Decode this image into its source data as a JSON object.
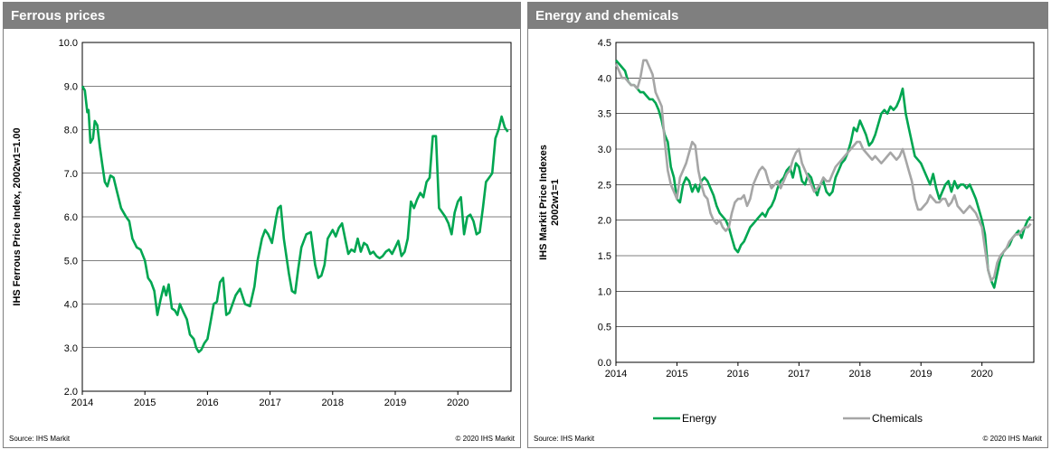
{
  "left_panel": {
    "title": "Ferrous prices",
    "source": "Source:  IHS Markit",
    "copyright": "© 2020  IHS Markit"
  },
  "right_panel": {
    "title": "Energy and chemicals",
    "source": "Source:  IHS Markit",
    "copyright": "© 2020  IHS Markit"
  },
  "colors": {
    "energy": "#00a651",
    "chemicals": "#a6a6a6",
    "ferrous": "#00a651",
    "header": "#7f7f7f"
  },
  "chart_data": [
    {
      "type": "line",
      "title": "Ferrous prices",
      "xlabel": "",
      "ylabel": "IHS Ferrous Price Index, 2002w1=1.00",
      "xlim": [
        2014,
        2020.85
      ],
      "ylim": [
        2.0,
        10.0
      ],
      "xticks": [
        "2014",
        "2015",
        "2016",
        "2017",
        "2018",
        "2019",
        "2020"
      ],
      "yticks": [
        "2.0",
        "3.0",
        "4.0",
        "5.0",
        "6.0",
        "7.0",
        "8.0",
        "9.0",
        "10.0"
      ],
      "grid": true,
      "legend": "none",
      "series": [
        {
          "name": "",
          "x": [
            2014.0,
            2014.04,
            2014.08,
            2014.1,
            2014.13,
            2014.17,
            2014.2,
            2014.24,
            2014.28,
            2014.32,
            2014.36,
            2014.4,
            2014.45,
            2014.5,
            2014.55,
            2014.62,
            2014.7,
            2014.75,
            2014.8,
            2014.87,
            2014.93,
            2015.0,
            2015.05,
            2015.1,
            2015.15,
            2015.2,
            2015.25,
            2015.3,
            2015.34,
            2015.38,
            2015.43,
            2015.48,
            2015.52,
            2015.56,
            2015.62,
            2015.67,
            2015.72,
            2015.78,
            2015.82,
            2015.86,
            2015.9,
            2015.95,
            2016.0,
            2016.05,
            2016.1,
            2016.15,
            2016.2,
            2016.25,
            2016.3,
            2016.35,
            2016.4,
            2016.45,
            2016.52,
            2016.6,
            2016.68,
            2016.75,
            2016.8,
            2016.87,
            2016.92,
            2016.97,
            2017.03,
            2017.1,
            2017.13,
            2017.17,
            2017.22,
            2017.27,
            2017.3,
            2017.35,
            2017.4,
            2017.45,
            2017.5,
            2017.58,
            2017.65,
            2017.72,
            2017.77,
            2017.82,
            2017.87,
            2017.92,
            2018.0,
            2018.05,
            2018.1,
            2018.15,
            2018.2,
            2018.25,
            2018.3,
            2018.35,
            2018.4,
            2018.45,
            2018.5,
            2018.55,
            2018.6,
            2018.65,
            2018.7,
            2018.75,
            2018.8,
            2018.85,
            2018.9,
            2018.95,
            2019.0,
            2019.05,
            2019.1,
            2019.15,
            2019.2,
            2019.25,
            2019.3,
            2019.35,
            2019.4,
            2019.45,
            2019.5,
            2019.55,
            2019.6,
            2019.65,
            2019.7,
            2019.75,
            2019.8,
            2019.85,
            2019.9,
            2019.95,
            2020.0,
            2020.05,
            2020.1,
            2020.15,
            2020.2,
            2020.25,
            2020.3,
            2020.35,
            2020.4,
            2020.45,
            2020.5,
            2020.55,
            2020.6,
            2020.65,
            2020.7,
            2020.75,
            2020.8
          ],
          "values": [
            9.0,
            8.9,
            8.4,
            8.45,
            7.7,
            7.8,
            8.2,
            8.1,
            7.6,
            7.2,
            6.8,
            6.7,
            6.95,
            6.9,
            6.6,
            6.2,
            6.0,
            5.9,
            5.5,
            5.3,
            5.25,
            5.0,
            4.6,
            4.5,
            4.3,
            3.75,
            4.1,
            4.4,
            4.2,
            4.45,
            3.9,
            3.85,
            3.75,
            4.0,
            3.8,
            3.65,
            3.3,
            3.2,
            3.0,
            2.9,
            2.95,
            3.1,
            3.2,
            3.6,
            4.0,
            4.05,
            4.5,
            4.6,
            3.75,
            3.8,
            4.0,
            4.2,
            4.35,
            4.0,
            3.95,
            4.4,
            5.0,
            5.5,
            5.7,
            5.6,
            5.4,
            6.0,
            6.2,
            6.25,
            5.5,
            5.0,
            4.7,
            4.3,
            4.25,
            4.8,
            5.3,
            5.6,
            5.65,
            4.9,
            4.6,
            4.65,
            4.9,
            5.5,
            5.7,
            5.55,
            5.75,
            5.85,
            5.5,
            5.15,
            5.25,
            5.2,
            5.5,
            5.2,
            5.4,
            5.35,
            5.15,
            5.2,
            5.1,
            5.05,
            5.1,
            5.2,
            5.25,
            5.15,
            5.3,
            5.45,
            5.1,
            5.2,
            5.5,
            6.35,
            6.2,
            6.4,
            6.55,
            6.45,
            6.8,
            6.9,
            7.85,
            7.85,
            6.2,
            6.1,
            6.0,
            5.85,
            5.6,
            6.1,
            6.35,
            6.45,
            5.6,
            6.0,
            6.05,
            5.9,
            5.6,
            5.65,
            6.2,
            6.8,
            6.9,
            7.0,
            7.8,
            8.0,
            8.3,
            8.05,
            7.95
          ],
          "color": "#00a651"
        }
      ]
    },
    {
      "type": "line",
      "title": "Energy and chemicals",
      "xlabel": "",
      "ylabel": "IHS Markit Price Indexes 2002w1=1",
      "xlim": [
        2014,
        2020.85
      ],
      "ylim": [
        0.0,
        4.5
      ],
      "xticks": [
        "2014",
        "2015",
        "2016",
        "2017",
        "2018",
        "2019",
        "2020"
      ],
      "yticks": [
        "0.0",
        "0.5",
        "1.0",
        "1.5",
        "2.0",
        "2.5",
        "3.0",
        "3.5",
        "4.0",
        "4.5"
      ],
      "grid": true,
      "legend": "bottom",
      "series": [
        {
          "name": "Energy",
          "color": "#00a651",
          "x": [
            2014.0,
            2014.05,
            2014.1,
            2014.15,
            2014.2,
            2014.25,
            2014.3,
            2014.35,
            2014.4,
            2014.45,
            2014.5,
            2014.55,
            2014.6,
            2014.65,
            2014.7,
            2014.75,
            2014.8,
            2014.85,
            2014.9,
            2014.95,
            2015.0,
            2015.05,
            2015.1,
            2015.15,
            2015.2,
            2015.25,
            2015.3,
            2015.35,
            2015.4,
            2015.45,
            2015.5,
            2015.55,
            2015.6,
            2015.65,
            2015.7,
            2015.75,
            2015.8,
            2015.85,
            2015.9,
            2015.95,
            2016.0,
            2016.05,
            2016.1,
            2016.15,
            2016.2,
            2016.25,
            2016.3,
            2016.35,
            2016.4,
            2016.45,
            2016.5,
            2016.55,
            2016.6,
            2016.65,
            2016.7,
            2016.75,
            2016.8,
            2016.85,
            2016.9,
            2016.95,
            2017.0,
            2017.05,
            2017.1,
            2017.15,
            2017.2,
            2017.25,
            2017.3,
            2017.35,
            2017.4,
            2017.45,
            2017.5,
            2017.55,
            2017.6,
            2017.65,
            2017.7,
            2017.75,
            2017.8,
            2017.85,
            2017.9,
            2017.95,
            2018.0,
            2018.05,
            2018.1,
            2018.15,
            2018.2,
            2018.25,
            2018.3,
            2018.35,
            2018.4,
            2018.45,
            2018.5,
            2018.55,
            2018.6,
            2018.65,
            2018.7,
            2018.75,
            2018.8,
            2018.85,
            2018.9,
            2018.95,
            2019.0,
            2019.05,
            2019.1,
            2019.15,
            2019.2,
            2019.25,
            2019.3,
            2019.35,
            2019.4,
            2019.45,
            2019.5,
            2019.55,
            2019.6,
            2019.65,
            2019.7,
            2019.75,
            2019.8,
            2019.85,
            2019.9,
            2019.95,
            2020.0,
            2020.05,
            2020.1,
            2020.15,
            2020.2,
            2020.25,
            2020.3,
            2020.35,
            2020.4,
            2020.45,
            2020.5,
            2020.55,
            2020.6,
            2020.65,
            2020.7,
            2020.75,
            2020.8
          ],
          "values": [
            4.25,
            4.2,
            4.15,
            4.1,
            3.95,
            3.9,
            3.9,
            3.85,
            3.8,
            3.8,
            3.75,
            3.7,
            3.7,
            3.65,
            3.55,
            3.4,
            3.2,
            3.1,
            2.75,
            2.6,
            2.3,
            2.25,
            2.5,
            2.6,
            2.55,
            2.4,
            2.5,
            2.4,
            2.55,
            2.6,
            2.55,
            2.45,
            2.35,
            2.2,
            2.1,
            2.05,
            2.0,
            1.9,
            1.75,
            1.6,
            1.55,
            1.65,
            1.7,
            1.8,
            1.9,
            1.95,
            2.0,
            2.05,
            2.1,
            2.05,
            2.15,
            2.2,
            2.3,
            2.45,
            2.55,
            2.6,
            2.7,
            2.75,
            2.6,
            2.8,
            2.75,
            2.55,
            2.5,
            2.65,
            2.6,
            2.45,
            2.35,
            2.5,
            2.55,
            2.4,
            2.35,
            2.4,
            2.6,
            2.7,
            2.8,
            2.85,
            2.95,
            3.1,
            3.3,
            3.25,
            3.4,
            3.3,
            3.2,
            3.05,
            3.1,
            3.2,
            3.35,
            3.5,
            3.55,
            3.5,
            3.6,
            3.55,
            3.6,
            3.7,
            3.85,
            3.5,
            3.3,
            3.1,
            2.9,
            2.85,
            2.8,
            2.7,
            2.6,
            2.5,
            2.65,
            2.45,
            2.3,
            2.4,
            2.5,
            2.55,
            2.4,
            2.55,
            2.45,
            2.5,
            2.5,
            2.45,
            2.5,
            2.4,
            2.3,
            2.15,
            2.0,
            1.8,
            1.3,
            1.15,
            1.05,
            1.25,
            1.45,
            1.55,
            1.6,
            1.65,
            1.75,
            1.8,
            1.85,
            1.75,
            1.9,
            2.0,
            2.05
          ]
        },
        {
          "name": "Chemicals",
          "color": "#a6a6a6",
          "x": [
            2014.0,
            2014.05,
            2014.1,
            2014.15,
            2014.2,
            2014.25,
            2014.3,
            2014.35,
            2014.4,
            2014.45,
            2014.5,
            2014.55,
            2014.6,
            2014.65,
            2014.7,
            2014.75,
            2014.8,
            2014.85,
            2014.9,
            2014.95,
            2015.0,
            2015.05,
            2015.1,
            2015.15,
            2015.2,
            2015.25,
            2015.3,
            2015.35,
            2015.4,
            2015.45,
            2015.5,
            2015.55,
            2015.6,
            2015.65,
            2015.7,
            2015.75,
            2015.8,
            2015.85,
            2015.9,
            2015.95,
            2016.0,
            2016.05,
            2016.1,
            2016.15,
            2016.2,
            2016.25,
            2016.3,
            2016.35,
            2016.4,
            2016.45,
            2016.5,
            2016.55,
            2016.6,
            2016.65,
            2016.7,
            2016.75,
            2016.8,
            2016.85,
            2016.9,
            2016.95,
            2017.0,
            2017.05,
            2017.1,
            2017.15,
            2017.2,
            2017.25,
            2017.3,
            2017.35,
            2017.4,
            2017.45,
            2017.5,
            2017.55,
            2017.6,
            2017.65,
            2017.7,
            2017.75,
            2017.8,
            2017.85,
            2017.9,
            2017.95,
            2018.0,
            2018.05,
            2018.1,
            2018.15,
            2018.2,
            2018.25,
            2018.3,
            2018.35,
            2018.4,
            2018.45,
            2018.5,
            2018.55,
            2018.6,
            2018.65,
            2018.7,
            2018.75,
            2018.8,
            2018.85,
            2018.9,
            2018.95,
            2019.0,
            2019.05,
            2019.1,
            2019.15,
            2019.2,
            2019.25,
            2019.3,
            2019.35,
            2019.4,
            2019.45,
            2019.5,
            2019.55,
            2019.6,
            2019.65,
            2019.7,
            2019.75,
            2019.8,
            2019.85,
            2019.9,
            2019.95,
            2020.0,
            2020.05,
            2020.1,
            2020.15,
            2020.2,
            2020.25,
            2020.3,
            2020.35,
            2020.4,
            2020.45,
            2020.5,
            2020.55,
            2020.6,
            2020.65,
            2020.7,
            2020.75,
            2020.8
          ],
          "values": [
            4.2,
            4.1,
            4.0,
            4.0,
            3.95,
            3.9,
            3.9,
            3.85,
            4.0,
            4.25,
            4.25,
            4.15,
            4.05,
            3.8,
            3.7,
            3.6,
            3.1,
            2.7,
            2.5,
            2.4,
            2.3,
            2.6,
            2.7,
            2.8,
            2.95,
            3.1,
            3.05,
            2.7,
            2.5,
            2.35,
            2.3,
            2.1,
            2.0,
            1.95,
            2.0,
            1.9,
            1.85,
            1.9,
            2.1,
            2.25,
            2.3,
            2.3,
            2.35,
            2.2,
            2.3,
            2.5,
            2.6,
            2.7,
            2.75,
            2.7,
            2.55,
            2.45,
            2.5,
            2.55,
            2.45,
            2.55,
            2.65,
            2.7,
            2.85,
            2.95,
            3.0,
            2.8,
            2.7,
            2.6,
            2.5,
            2.4,
            2.45,
            2.5,
            2.6,
            2.55,
            2.55,
            2.65,
            2.75,
            2.8,
            2.85,
            2.9,
            2.95,
            3.0,
            3.05,
            3.1,
            3.1,
            3.0,
            2.95,
            2.9,
            2.85,
            2.9,
            2.85,
            2.8,
            2.85,
            2.9,
            2.95,
            2.9,
            2.85,
            2.9,
            3.0,
            2.85,
            2.7,
            2.55,
            2.3,
            2.15,
            2.15,
            2.2,
            2.25,
            2.35,
            2.3,
            2.25,
            2.25,
            2.3,
            2.3,
            2.2,
            2.25,
            2.35,
            2.2,
            2.15,
            2.1,
            2.15,
            2.2,
            2.15,
            2.1,
            2.0,
            1.9,
            1.6,
            1.3,
            1.15,
            1.2,
            1.4,
            1.5,
            1.55,
            1.6,
            1.7,
            1.75,
            1.8,
            1.8,
            1.85,
            1.9,
            1.9,
            1.95
          ]
        }
      ]
    }
  ]
}
